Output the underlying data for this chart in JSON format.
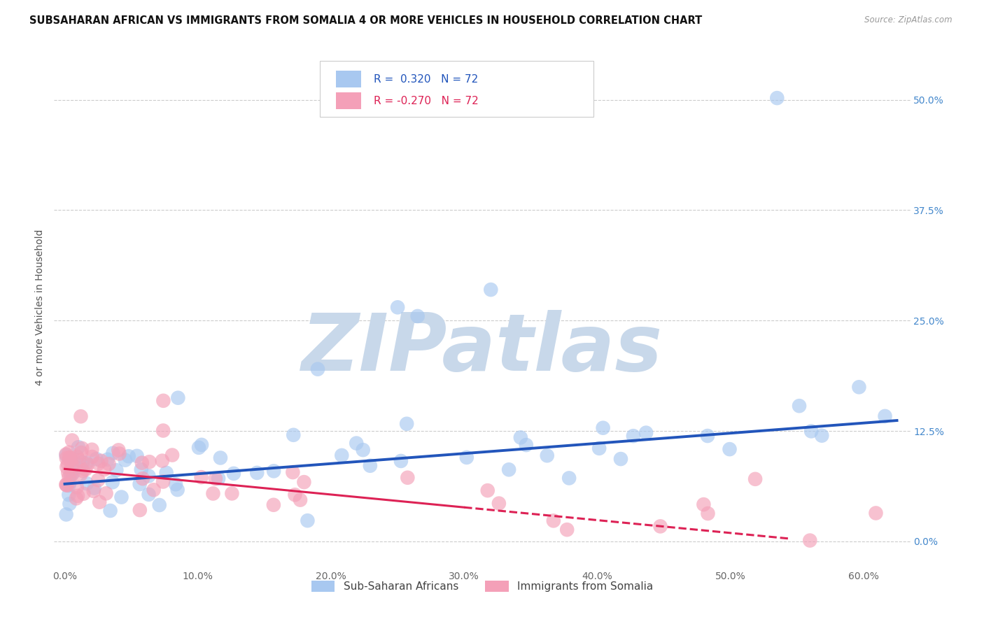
{
  "title": "SUBSAHARAN AFRICAN VS IMMIGRANTS FROM SOMALIA 4 OR MORE VEHICLES IN HOUSEHOLD CORRELATION CHART",
  "source": "Source: ZipAtlas.com",
  "ylabel": "4 or more Vehicles in Household",
  "xlabel_ticks": [
    "0.0%",
    "10.0%",
    "20.0%",
    "30.0%",
    "40.0%",
    "50.0%",
    "60.0%"
  ],
  "ylabel_ticks": [
    "0.0%",
    "12.5%",
    "25.0%",
    "37.5%",
    "50.0%"
  ],
  "ylabel_vals": [
    0.0,
    0.125,
    0.25,
    0.375,
    0.5
  ],
  "xlabel_vals": [
    0.0,
    0.1,
    0.2,
    0.3,
    0.4,
    0.5,
    0.6
  ],
  "xlim": [
    -0.008,
    0.635
  ],
  "ylim": [
    -0.03,
    0.56
  ],
  "blue_R": 0.32,
  "blue_N": 72,
  "pink_R": -0.27,
  "pink_N": 72,
  "blue_color": "#a8c8f0",
  "pink_color": "#f4a0b8",
  "blue_line_color": "#2255bb",
  "pink_line_color": "#dd2255",
  "legend_label_blue": "Sub-Saharan Africans",
  "legend_label_pink": "Immigrants from Somalia",
  "watermark": "ZIPatlas",
  "grid_color": "#cccccc",
  "title_fontsize": 10.5,
  "axis_tick_fontsize": 10,
  "right_tick_color": "#4488cc",
  "bottom_tick_color": "#666666",
  "ylabel_fontsize": 10,
  "ylabel_color": "#555555"
}
